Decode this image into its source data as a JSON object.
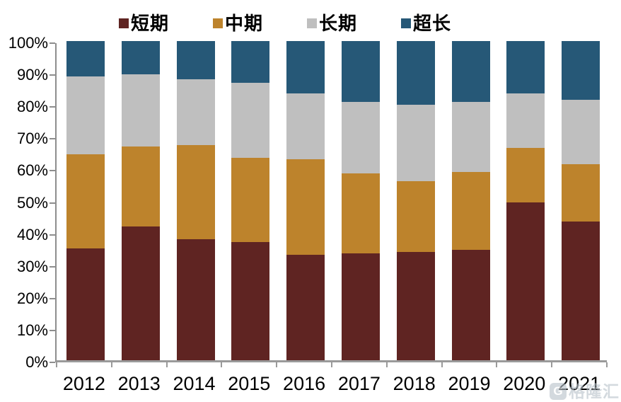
{
  "watermark": {
    "logo": "G",
    "text": "格隆汇"
  },
  "axes": {
    "y_tick_labels": [
      "100%",
      "90%",
      "80%",
      "70%",
      "60%",
      "50%",
      "40%",
      "30%",
      "20%",
      "10%",
      "0%"
    ],
    "axis_color": "#8E8E8E",
    "text_color": "#000000"
  },
  "chart_data": {
    "type": "bar",
    "stacked": true,
    "percent_stacked": true,
    "title": "",
    "xlabel": "",
    "ylabel": "",
    "ylim": [
      0,
      100
    ],
    "y_tick_step": 10,
    "grid": false,
    "legend_position": "top",
    "categories": [
      "2012",
      "2013",
      "2014",
      "2015",
      "2016",
      "2017",
      "2018",
      "2019",
      "2020",
      "2021"
    ],
    "series": [
      {
        "name": "短期",
        "color": "#5F2422",
        "values": [
          35,
          42,
          38,
          37,
          33,
          33.5,
          34,
          34.5,
          49.5,
          43.5
        ]
      },
      {
        "name": "中期",
        "color": "#BD832C",
        "values": [
          29.5,
          25,
          29.5,
          26.5,
          30,
          25,
          22,
          24.5,
          17,
          18
        ]
      },
      {
        "name": "长期",
        "color": "#BFBFBF",
        "values": [
          24.5,
          22.5,
          20.5,
          23.5,
          20.5,
          22.5,
          24,
          22,
          17,
          20
        ]
      },
      {
        "name": "超长",
        "color": "#265877",
        "values": [
          11,
          10.5,
          12,
          13,
          16.5,
          19,
          20,
          19,
          16.5,
          18.5
        ]
      }
    ],
    "y_tick_labels": [
      "100%",
      "90%",
      "80%",
      "70%",
      "60%",
      "50%",
      "40%",
      "30%",
      "20%",
      "10%",
      "0%"
    ]
  }
}
